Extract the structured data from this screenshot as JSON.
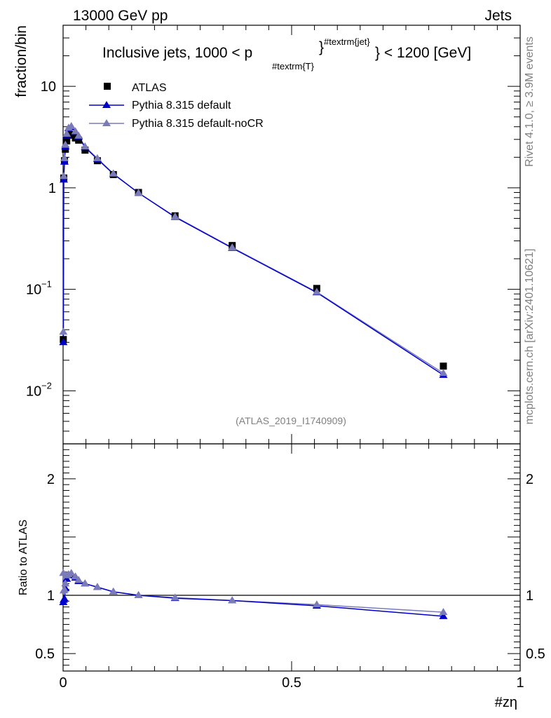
{
  "header": {
    "left": "13000 GeV pp",
    "right": "Jets"
  },
  "side_labels": {
    "rivet": "Rivet 4.1.0, ≥ 3.9M events",
    "mcplots": "mcplots.cern.ch [arXiv:2401.10621]"
  },
  "analysis_id": "(ATLAS_2019_I1740909)",
  "colors": {
    "data": "#000000",
    "default": "#0000cc",
    "nocr": "#7b7bb8"
  },
  "chart_data": [
    {
      "type": "scatter",
      "panel": "main",
      "title_main": "Inclusive jets, 1000 < p",
      "title_sub": "#textrm{T}",
      "title_sup": "#textrm{jet}",
      "title_end": "} < 1200 [GeV]",
      "xlabel": "#zη",
      "ylabel": "fraction/bin",
      "yscale": "log",
      "xlim": [
        0,
        1
      ],
      "ylim": [
        0.003,
        40
      ],
      "y_major_ticks": [
        {
          "value": 10,
          "base": "10",
          "exp": ""
        },
        {
          "value": 1,
          "base": "1",
          "exp": ""
        },
        {
          "value": 0.1,
          "base": "10",
          "exp": "−1"
        },
        {
          "value": 0.01,
          "base": "10",
          "exp": "−2"
        }
      ],
      "series": [
        {
          "name": "ATLAS",
          "marker": "square",
          "x": [
            0.0005,
            0.0015,
            0.003,
            0.005,
            0.008,
            0.012,
            0.018,
            0.027,
            0.034,
            0.048,
            0.075,
            0.11,
            0.165,
            0.245,
            0.37,
            0.555,
            0.832
          ],
          "y": [
            0.032,
            1.25,
            1.85,
            2.4,
            2.9,
            3.3,
            3.35,
            3.1,
            2.95,
            2.35,
            1.85,
            1.35,
            0.9,
            0.53,
            0.27,
            0.102,
            0.0175
          ]
        },
        {
          "name": "Pythia 8.315 default",
          "marker": "triangle",
          "x": [
            0.0005,
            0.0015,
            0.003,
            0.005,
            0.008,
            0.012,
            0.018,
            0.027,
            0.034,
            0.048,
            0.075,
            0.11,
            0.165,
            0.245,
            0.37,
            0.555,
            0.832
          ],
          "y": [
            0.03,
            1.2,
            1.8,
            2.55,
            3.3,
            3.85,
            3.95,
            3.55,
            3.2,
            2.5,
            1.92,
            1.37,
            0.89,
            0.515,
            0.255,
            0.093,
            0.0143
          ]
        },
        {
          "name": "Pythia 8.315 default-noCR",
          "marker": "triangle",
          "x": [
            0.0005,
            0.0015,
            0.003,
            0.005,
            0.008,
            0.012,
            0.018,
            0.027,
            0.034,
            0.048,
            0.075,
            0.11,
            0.165,
            0.245,
            0.37,
            0.555,
            0.832
          ],
          "y": [
            0.038,
            1.3,
            1.95,
            2.65,
            3.4,
            3.9,
            4.05,
            3.6,
            3.25,
            2.55,
            1.95,
            1.38,
            0.89,
            0.52,
            0.258,
            0.094,
            0.0149
          ]
        }
      ]
    },
    {
      "type": "line",
      "panel": "ratio",
      "ylabel": "Ratio to ATLAS",
      "xlim": [
        0,
        1
      ],
      "ylim": [
        0.35,
        2.3
      ],
      "reference_y": 1,
      "y_tick_labels": [
        {
          "value": 2,
          "label": "2"
        },
        {
          "value": 1,
          "label": "1"
        },
        {
          "value": 0.5,
          "label": "0.5"
        }
      ],
      "x_tick_labels": [
        {
          "value": 0,
          "label": "0"
        },
        {
          "value": 0.5,
          "label": "0.5"
        },
        {
          "value": 1,
          "label": "1"
        }
      ],
      "series": [
        {
          "name": "Pythia 8.315 default",
          "x": [
            0.0005,
            0.0015,
            0.003,
            0.005,
            0.008,
            0.012,
            0.018,
            0.027,
            0.034,
            0.048,
            0.075,
            0.11,
            0.165,
            0.245,
            0.37,
            0.555,
            0.832
          ],
          "y": [
            0.94,
            0.96,
            0.97,
            1.06,
            1.14,
            1.17,
            1.18,
            1.15,
            1.12,
            1.1,
            1.07,
            1.03,
            1.0,
            0.975,
            0.955,
            0.91,
            0.82
          ]
        },
        {
          "name": "Pythia 8.315 default-noCR",
          "x": [
            0.0005,
            0.0015,
            0.003,
            0.005,
            0.008,
            0.012,
            0.018,
            0.027,
            0.034,
            0.048,
            0.075,
            0.11,
            0.165,
            0.245,
            0.37,
            0.555,
            0.832
          ],
          "y": [
            1.19,
            1.04,
            1.05,
            1.1,
            1.17,
            1.18,
            1.19,
            1.16,
            1.13,
            1.1,
            1.07,
            1.03,
            1.0,
            0.98,
            0.955,
            0.92,
            0.855
          ]
        }
      ]
    }
  ]
}
